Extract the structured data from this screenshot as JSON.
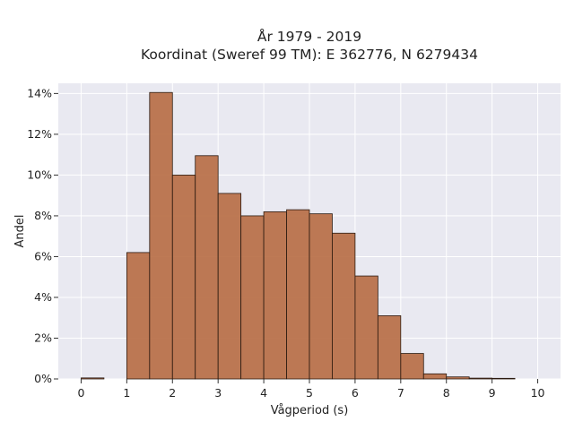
{
  "chart_data": {
    "type": "bar",
    "title": [
      "År 1979 - 2019",
      "Koordinat (Sweref 99 TM): E 362776, N 6279434"
    ],
    "xlabel": "Vågperiod (s)",
    "ylabel": "Andel",
    "xlim": [
      -0.5,
      10.5
    ],
    "ylim": [
      0,
      14.5
    ],
    "y_unit": "%",
    "bin_width": 0.5,
    "bin_starts": [
      0,
      0.5,
      1,
      1.5,
      2,
      2.5,
      3,
      3.5,
      4,
      4.5,
      5,
      5.5,
      6,
      6.5,
      7,
      7.5,
      8,
      8.5,
      9,
      9.5
    ],
    "values": [
      0.05,
      0,
      6.2,
      14.05,
      10.0,
      10.95,
      9.1,
      8.0,
      8.2,
      8.3,
      8.1,
      7.15,
      5.05,
      3.1,
      1.25,
      0.25,
      0.1,
      0.04,
      0.03,
      0
    ],
    "x_ticks": [
      0,
      1,
      2,
      3,
      4,
      5,
      6,
      7,
      8,
      9,
      10
    ],
    "x_tick_labels": [
      "0",
      "1",
      "2",
      "3",
      "4",
      "5",
      "6",
      "7",
      "8",
      "9",
      "10"
    ],
    "y_ticks": [
      0,
      2,
      4,
      6,
      8,
      10,
      12,
      14
    ],
    "y_tick_labels": [
      "0%",
      "2%",
      "4%",
      "6%",
      "8%",
      "10%",
      "12%",
      "14%"
    ],
    "grid": true,
    "colors": {
      "background": "#ffffff",
      "plot_area": "#e9e9f1",
      "bar_fill": "#b5683e",
      "bar_edge": "#2b1a10",
      "grid": "#ffffff"
    }
  }
}
